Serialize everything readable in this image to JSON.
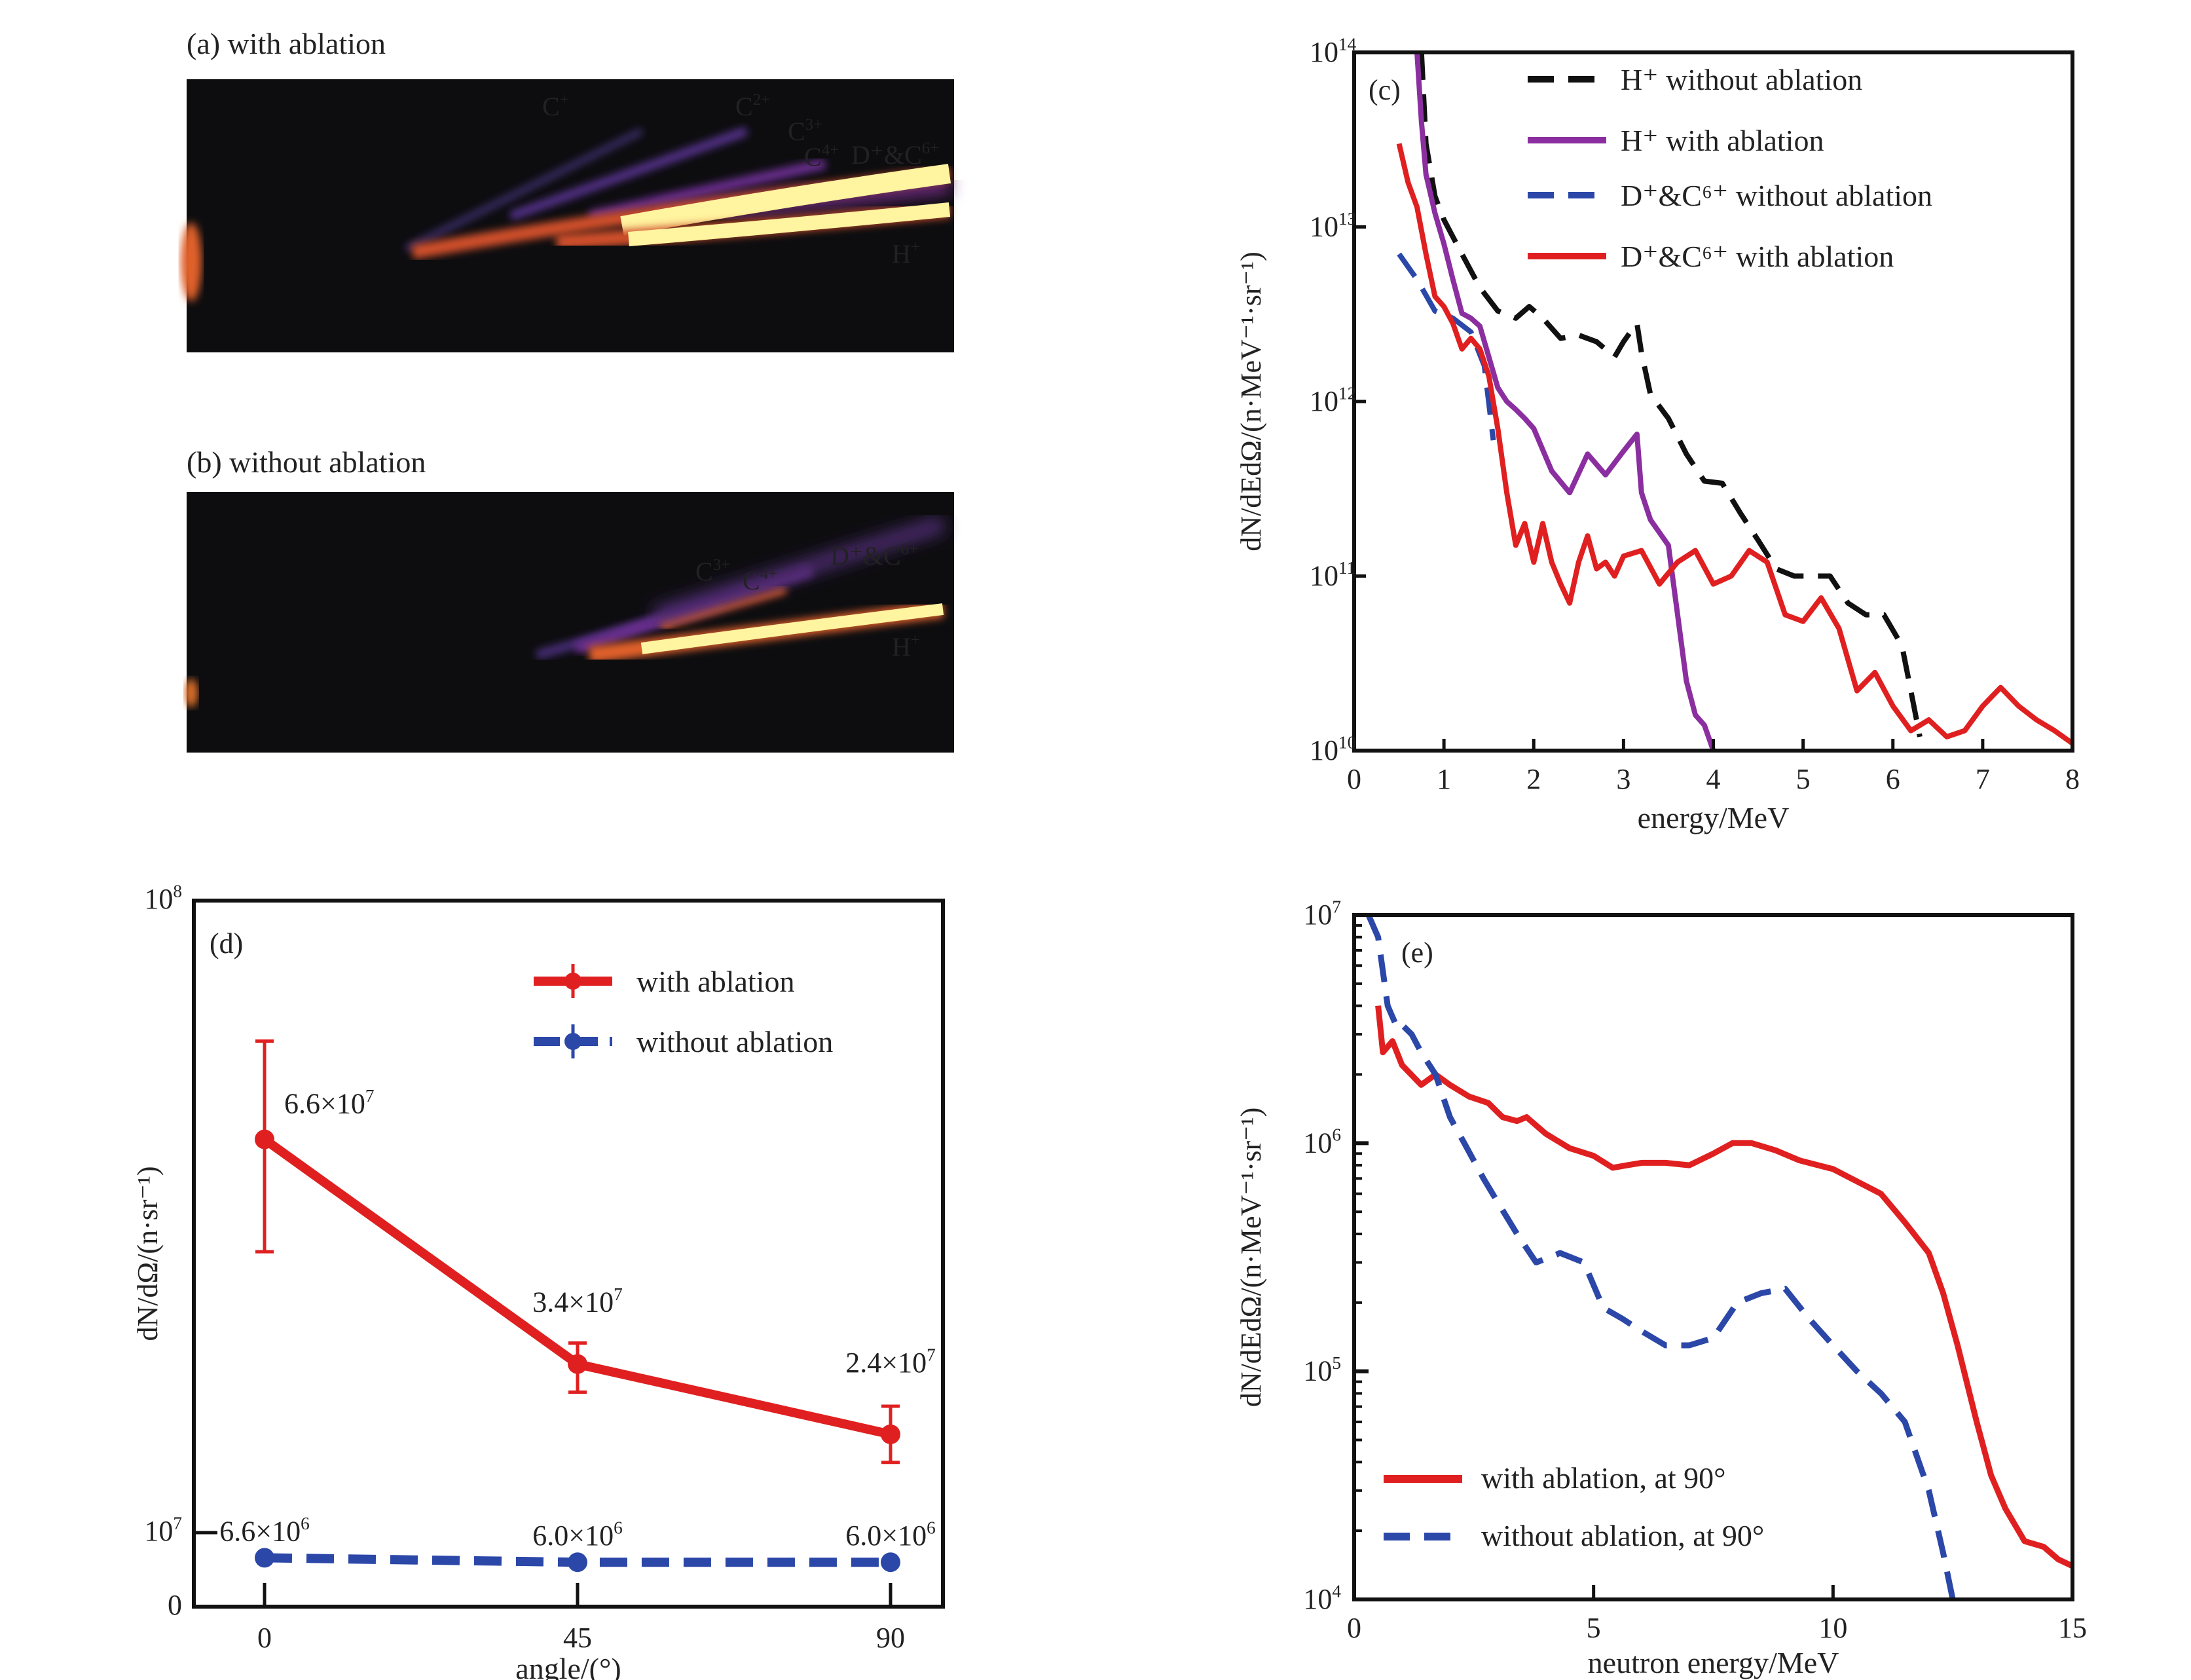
{
  "images": [
    {
      "label": "(a) with ablation",
      "annotations": [
        {
          "text": "C",
          "sup": "+"
        },
        {
          "text": "C",
          "sup": "2+"
        },
        {
          "text": "C",
          "sup": "3+"
        },
        {
          "text": "C",
          "sup": "4+"
        },
        {
          "text": "D⁺&C",
          "sup": "6+"
        },
        {
          "text": "H",
          "sup": "+"
        }
      ]
    },
    {
      "label": "(b) without ablation",
      "annotations": [
        {
          "text": "C",
          "sup": "3+"
        },
        {
          "text": "C",
          "sup": "4+"
        },
        {
          "text": "D⁺&C",
          "sup": "6+"
        },
        {
          "text": "H",
          "sup": "+"
        }
      ]
    }
  ],
  "chart_data": [
    {
      "panel": "(c)",
      "type": "line",
      "xlabel": "energy/MeV",
      "ylabel": "dN/dEdΩ/(n·MeV⁻¹·sr⁻¹)",
      "xlim": [
        0,
        8
      ],
      "ylim_log10": [
        10,
        14
      ],
      "x_ticks": [
        "0",
        "1",
        "2",
        "3",
        "4",
        "5",
        "6",
        "7",
        "8"
      ],
      "y_ticks": [
        {
          "base": "10",
          "exp": "10"
        },
        {
          "base": "10",
          "exp": "11"
        },
        {
          "base": "10",
          "exp": "12"
        },
        {
          "base": "10",
          "exp": "13"
        },
        {
          "base": "10",
          "exp": "14"
        }
      ],
      "yscale": "log",
      "legend_position": "top-right",
      "series": [
        {
          "name": "H⁺ without ablation",
          "color": "#111111",
          "dash": true,
          "x": [
            0.75,
            0.8,
            0.9,
            1.0,
            1.2,
            1.4,
            1.6,
            1.8,
            1.95,
            2.1,
            2.3,
            2.5,
            2.7,
            2.9,
            3.0,
            3.1,
            3.15,
            3.2,
            3.3,
            3.5,
            3.7,
            3.9,
            4.1,
            4.3,
            4.5,
            4.7,
            4.9,
            5.1,
            5.3,
            5.5,
            5.7,
            5.9,
            6.1,
            6.2,
            6.3
          ],
          "y": [
            100000000000000.0,
            30000000000000.0,
            15000000000000.0,
            11000000000000.0,
            7000000000000.0,
            4500000000000.0,
            3300000000000.0,
            3000000000000.0,
            3500000000000.0,
            3000000000000.0,
            2300000000000.0,
            2400000000000.0,
            2200000000000.0,
            1800000000000.0,
            2200000000000.0,
            2600000000000.0,
            2800000000000.0,
            1900000000000.0,
            1100000000000.0,
            800000000000.0,
            500000000000.0,
            350000000000.0,
            340000000000.0,
            230000000000.0,
            160000000000.0,
            110000000000.0,
            100000000000.0,
            100000000000.0,
            100000000000.0,
            70000000000.0,
            60000000000.0,
            60000000000.0,
            40000000000.0,
            22000000000.0,
            12000000000.0
          ]
        },
        {
          "name": "H⁺ with ablation",
          "color": "#8b2fa0",
          "dash": false,
          "x": [
            0.7,
            0.75,
            0.8,
            0.9,
            1.0,
            1.1,
            1.2,
            1.3,
            1.4,
            1.5,
            1.6,
            1.7,
            1.8,
            1.9,
            2.0,
            2.2,
            2.4,
            2.6,
            2.8,
            3.0,
            3.15,
            3.2,
            3.3,
            3.5,
            3.7,
            3.8,
            3.9,
            4.0
          ],
          "y": [
            100000000000000.0,
            40000000000000.0,
            20000000000000.0,
            12000000000000.0,
            8000000000000.0,
            5000000000000.0,
            3200000000000.0,
            3000000000000.0,
            2700000000000.0,
            1800000000000.0,
            1200000000000.0,
            1000000000000.0,
            900000000000.0,
            800000000000.0,
            700000000000.0,
            400000000000.0,
            300000000000.0,
            500000000000.0,
            380000000000.0,
            520000000000.0,
            650000000000.0,
            300000000000.0,
            210000000000.0,
            150000000000.0,
            25000000000.0,
            16000000000.0,
            14000000000.0,
            10000000000.0
          ]
        },
        {
          "name": "D⁺&C⁶⁺ without ablation",
          "color": "#2b47a8",
          "dash": true,
          "x": [
            0.5,
            0.7,
            0.9,
            1.1,
            1.3,
            1.45,
            1.55
          ],
          "y": [
            7000000000000.0,
            5000000000000.0,
            3300000000000.0,
            3000000000000.0,
            2500000000000.0,
            1600000000000.0,
            600000000000.0
          ]
        },
        {
          "name": "D⁺&C⁶⁺ with ablation",
          "color": "#e02020",
          "dash": false,
          "x": [
            0.5,
            0.6,
            0.7,
            0.8,
            0.9,
            1.0,
            1.1,
            1.2,
            1.3,
            1.4,
            1.5,
            1.6,
            1.7,
            1.8,
            1.9,
            2.0,
            2.1,
            2.2,
            2.3,
            2.4,
            2.5,
            2.6,
            2.7,
            2.8,
            2.9,
            3.0,
            3.2,
            3.4,
            3.6,
            3.8,
            4.0,
            4.2,
            4.4,
            4.6,
            4.8,
            5.0,
            5.2,
            5.4,
            5.6,
            5.8,
            6.0,
            6.2,
            6.4,
            6.6,
            6.8,
            7.0,
            7.2,
            7.4,
            7.6,
            7.8,
            8.0
          ],
          "y": [
            30000000000000.0,
            18000000000000.0,
            13000000000000.0,
            7000000000000.0,
            4000000000000.0,
            3500000000000.0,
            2800000000000.0,
            2000000000000.0,
            2300000000000.0,
            2000000000000.0,
            1400000000000.0,
            700000000000.0,
            300000000000.0,
            150000000000.0,
            200000000000.0,
            120000000000.0,
            200000000000.0,
            120000000000.0,
            90000000000.0,
            70000000000.0,
            120000000000.0,
            170000000000.0,
            110000000000.0,
            120000000000.0,
            100000000000.0,
            130000000000.0,
            140000000000.0,
            90000000000.0,
            120000000000.0,
            140000000000.0,
            90000000000.0,
            100000000000.0,
            140000000000.0,
            120000000000.0,
            60000000000.0,
            55000000000.0,
            75000000000.0,
            50000000000.0,
            22000000000.0,
            28000000000.0,
            18000000000.0,
            13000000000.0,
            15000000000.0,
            12000000000.0,
            13000000000.0,
            18000000000.0,
            23000000000.0,
            18000000000.0,
            15000000000.0,
            13000000000.0,
            11000000000.0
          ]
        }
      ]
    },
    {
      "panel": "(d)",
      "type": "line",
      "xlabel": "angle/(°)",
      "ylabel": "dN/dΩ/(n·sr⁻¹)",
      "x_ticks": [
        "0",
        "45",
        "90"
      ],
      "y_ticks": [
        {
          "base": "0",
          "exp": ""
        },
        {
          "base": "10",
          "exp": "7"
        },
        {
          "base": "10",
          "exp": "8"
        }
      ],
      "legend_position": "top-right",
      "series": [
        {
          "name": "with ablation",
          "color": "#e02020",
          "dash": false,
          "x": [
            0,
            45,
            90
          ],
          "y": [
            66000000.0,
            34000000.0,
            24000000.0
          ],
          "labels": [
            {
              "m": "6.6×10",
              "e": "7"
            },
            {
              "m": "3.4×10",
              "e": "7"
            },
            {
              "m": "2.4×10",
              "e": "7"
            }
          ],
          "err_upper": [
            80000000.0,
            37000000.0,
            28000000.0
          ],
          "err_lower": [
            50000000.0,
            30000000.0,
            20000000.0
          ]
        },
        {
          "name": "without ablation",
          "color": "#2b47a8",
          "dash": true,
          "x": [
            0,
            45,
            90
          ],
          "y": [
            6600000.0,
            6000000.0,
            6000000.0
          ],
          "labels": [
            {
              "m": "6.6×10",
              "e": "6"
            },
            {
              "m": "6.0×10",
              "e": "6"
            },
            {
              "m": "6.0×10",
              "e": "6"
            }
          ]
        }
      ]
    },
    {
      "panel": "(e)",
      "type": "line",
      "xlabel": "neutron energy/MeV",
      "ylabel": "dN/dEdΩ/(n·MeV⁻¹·sr⁻¹)",
      "xlim": [
        0,
        15
      ],
      "ylim_log10": [
        4,
        7
      ],
      "x_ticks": [
        "0",
        "5",
        "10",
        "15"
      ],
      "y_ticks": [
        {
          "base": "10",
          "exp": "4"
        },
        {
          "base": "10",
          "exp": "5"
        },
        {
          "base": "10",
          "exp": "6"
        },
        {
          "base": "10",
          "exp": "7"
        }
      ],
      "yscale": "log",
      "legend_position": "bottom-left",
      "series": [
        {
          "name": "with ablation, at 90°",
          "color": "#e02020",
          "dash": false,
          "x": [
            0.5,
            0.6,
            0.8,
            1.0,
            1.4,
            1.7,
            2.0,
            2.4,
            2.8,
            3.1,
            3.4,
            3.6,
            4.0,
            4.5,
            5.0,
            5.4,
            5.7,
            6.0,
            6.5,
            7.0,
            7.5,
            7.9,
            8.3,
            8.8,
            9.3,
            10.0,
            10.5,
            11.0,
            11.5,
            12.0,
            12.3,
            12.6,
            13.0,
            13.3,
            13.6,
            14.0,
            14.4,
            14.7,
            15.0
          ],
          "y": [
            4000000.0,
            2500000.0,
            2800000.0,
            2200000.0,
            1800000.0,
            2000000.0,
            1800000.0,
            1600000.0,
            1500000.0,
            1300000.0,
            1250000.0,
            1300000.0,
            1100000.0,
            950000.0,
            880000.0,
            780000.0,
            800000.0,
            820000.0,
            820000.0,
            800000.0,
            900000.0,
            1000000.0,
            1000000.0,
            930000.0,
            840000.0,
            770000.0,
            680000.0,
            600000.0,
            450000.0,
            330000.0,
            220000.0,
            130000.0,
            60000.0,
            35000.0,
            25000.0,
            18000.0,
            17000.0,
            15000.0,
            14000.0
          ]
        },
        {
          "name": "without ablation, at 90°",
          "color": "#2b47a8",
          "dash": true,
          "x": [
            0.3,
            0.5,
            0.7,
            0.9,
            1.0,
            1.2,
            1.4,
            1.7,
            2.0,
            2.3,
            2.7,
            3.0,
            3.4,
            3.8,
            4.3,
            4.8,
            5.2,
            5.6,
            6.0,
            6.5,
            7.0,
            7.5,
            8.0,
            8.5,
            9.0,
            9.5,
            10.0,
            10.5,
            11.0,
            11.5,
            12.0,
            12.3,
            12.5
          ],
          "y": [
            10000000.0,
            8000000.0,
            4000000.0,
            3200000.0,
            3300000.0,
            3000000.0,
            2500000.0,
            2000000.0,
            1300000.0,
            1000000.0,
            700000.0,
            550000.0,
            400000.0,
            300000.0,
            330000.0,
            300000.0,
            190000.0,
            170000.0,
            150000.0,
            130000.0,
            130000.0,
            140000.0,
            200000.0,
            220000.0,
            230000.0,
            170000.0,
            130000.0,
            100000.0,
            80000.0,
            60000.0,
            30000.0,
            16000.0,
            10000.0
          ]
        }
      ]
    }
  ]
}
